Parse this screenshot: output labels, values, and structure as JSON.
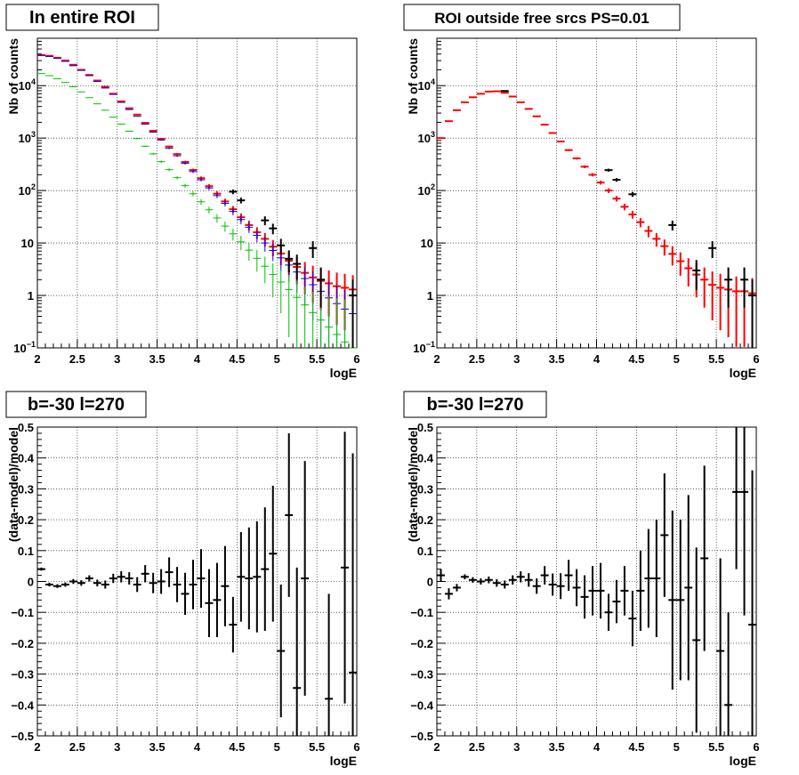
{
  "chart_data": [
    {
      "type": "scatter",
      "title": "In entire ROI",
      "xlabel": "logE",
      "ylabel": "Nb of counts",
      "xlim": [
        2,
        6
      ],
      "ylim": [
        0.1,
        80000
      ],
      "yscale": "log",
      "grid": true,
      "x_ticks": [
        "2",
        "2.5",
        "3",
        "3.5",
        "4",
        "4.5",
        "5",
        "5.5",
        "6"
      ],
      "y_ticks": [
        {
          "v": 0.1,
          "base": "10",
          "exp": "−1"
        },
        {
          "v": 1,
          "label": "1"
        },
        {
          "v": 10,
          "label": "10"
        },
        {
          "v": 100,
          "base": "10",
          "exp": "2"
        },
        {
          "v": 1000,
          "base": "10",
          "exp": "3"
        },
        {
          "v": 10000,
          "base": "10",
          "exp": "4"
        }
      ],
      "x": [
        2.05,
        2.15,
        2.25,
        2.35,
        2.45,
        2.55,
        2.65,
        2.75,
        2.85,
        2.95,
        3.05,
        3.15,
        3.25,
        3.35,
        3.45,
        3.55,
        3.65,
        3.75,
        3.85,
        3.95,
        4.05,
        4.15,
        4.25,
        4.35,
        4.45,
        4.55,
        4.65,
        4.75,
        4.85,
        4.95,
        5.05,
        5.15,
        5.25,
        5.35,
        5.45,
        5.55,
        5.65,
        5.75,
        5.85,
        5.95
      ],
      "series": [
        {
          "color": "#ff0000",
          "values": [
            38000,
            37000,
            34000,
            30000,
            25000,
            20000,
            16000,
            12500,
            9500,
            7000,
            5000,
            3700,
            2800,
            1950,
            1380,
            970,
            690,
            495,
            350,
            246,
            172,
            121,
            87,
            62,
            44,
            31,
            22,
            16,
            12,
            8.5,
            6.3,
            4.6,
            3.5,
            2.7,
            2.2,
            1.9,
            1.7,
            1.5,
            1.4,
            1.3
          ]
        },
        {
          "color": "#0000ff",
          "values": [
            38000,
            36000,
            33000,
            29000,
            24000,
            19500,
            15500,
            12000,
            9000,
            6800,
            4800,
            3500,
            2600,
            1850,
            1300,
            920,
            640,
            460,
            330,
            230,
            160,
            112,
            80,
            57,
            40,
            28,
            20,
            14,
            10,
            7.2,
            5.2,
            3.8,
            2.8,
            2.1,
            1.6,
            1.2,
            0.9,
            0.7,
            0.55,
            0.45
          ]
        },
        {
          "color": "#00c000",
          "values": [
            17000,
            15500,
            13500,
            11500,
            9500,
            7600,
            5900,
            4500,
            3400,
            2500,
            1850,
            1350,
            980,
            700,
            500,
            355,
            250,
            176,
            124,
            87,
            61,
            43,
            30,
            21,
            15,
            10.5,
            7.3,
            5.1,
            3.6,
            2.5,
            1.8,
            1.3,
            0.92,
            0.66,
            0.47,
            0.34,
            0.25,
            0.18,
            0.13,
            0.1
          ]
        },
        {
          "color": "#000000",
          "x": [
            4.45,
            4.55,
            4.85,
            4.95,
            5.05,
            5.15,
            5.25,
            5.45,
            5.55,
            5.95
          ],
          "values": [
            95,
            65,
            27,
            19,
            9,
            5,
            4,
            8,
            2,
            1
          ]
        }
      ]
    },
    {
      "type": "scatter",
      "title": "ROI outside free srcs PS=0.01",
      "xlabel": "logE",
      "ylabel": "Nb of counts",
      "xlim": [
        2,
        6
      ],
      "ylim": [
        0.1,
        80000
      ],
      "yscale": "log",
      "grid": true,
      "x_ticks": [
        "2",
        "2.5",
        "3",
        "3.5",
        "4",
        "4.5",
        "5",
        "5.5",
        "6"
      ],
      "y_ticks": [
        {
          "v": 0.1,
          "base": "10",
          "exp": "−1"
        },
        {
          "v": 1,
          "label": "1"
        },
        {
          "v": 10,
          "label": "10"
        },
        {
          "v": 100,
          "base": "10",
          "exp": "2"
        },
        {
          "v": 1000,
          "base": "10",
          "exp": "3"
        },
        {
          "v": 10000,
          "base": "10",
          "exp": "4"
        }
      ],
      "x": [
        2.05,
        2.15,
        2.25,
        2.35,
        2.45,
        2.55,
        2.65,
        2.75,
        2.85,
        2.95,
        3.05,
        3.15,
        3.25,
        3.35,
        3.45,
        3.55,
        3.65,
        3.75,
        3.85,
        3.95,
        4.05,
        4.15,
        4.25,
        4.35,
        4.45,
        4.55,
        4.65,
        4.75,
        4.85,
        4.95,
        5.05,
        5.15,
        5.25,
        5.35,
        5.45,
        5.55,
        5.65,
        5.75,
        5.85,
        5.95
      ],
      "series": [
        {
          "color": "#ff0000",
          "values": [
            1000,
            2100,
            3400,
            4800,
            6000,
            7000,
            7700,
            7800,
            7300,
            6200,
            4800,
            3600,
            2600,
            1800,
            1250,
            860,
            590,
            410,
            285,
            200,
            142,
            100,
            70,
            49,
            35,
            25,
            17,
            12,
            8.7,
            6.2,
            4.5,
            3.3,
            2.5,
            2,
            1.6,
            1.4,
            1.3,
            1.2,
            1.2,
            1.1
          ]
        },
        {
          "color": "#000000",
          "x": [
            2.85,
            4.15,
            4.25,
            4.45,
            4.95,
            5.25,
            5.45,
            5.65,
            5.85,
            5.95
          ],
          "values": [
            7900,
            245,
            160,
            85,
            22,
            3,
            8,
            2,
            2,
            1
          ]
        }
      ]
    },
    {
      "type": "scatter",
      "title": "b=-30 l=270",
      "xlabel": "logE",
      "ylabel": "(data-model)/model",
      "xlim": [
        2,
        6
      ],
      "ylim": [
        -0.5,
        0.5
      ],
      "grid": true,
      "x_ticks": [
        "2",
        "2.5",
        "3",
        "3.5",
        "4",
        "4.5",
        "5",
        "5.5",
        "6"
      ],
      "y_ticks": [
        "−0.5",
        "−0.4",
        "−0.3",
        "−0.2",
        "−0.1",
        "0",
        "0.1",
        "0.2",
        "0.3",
        "0.4",
        "0.5"
      ],
      "x": [
        2.05,
        2.15,
        2.25,
        2.35,
        2.45,
        2.55,
        2.65,
        2.75,
        2.85,
        2.95,
        3.05,
        3.15,
        3.25,
        3.35,
        3.45,
        3.55,
        3.65,
        3.75,
        3.85,
        3.95,
        4.05,
        4.15,
        4.25,
        4.35,
        4.45,
        4.55,
        4.65,
        4.75,
        4.85,
        4.95,
        5.05,
        5.15,
        5.25,
        5.35,
        5.45,
        5.55,
        5.65,
        5.75,
        5.85,
        5.95
      ],
      "values": [
        0.04,
        -0.01,
        -0.015,
        -0.01,
        0.0,
        -0.005,
        0.01,
        -0.005,
        -0.01,
        0.01,
        0.015,
        0.01,
        -0.01,
        0.025,
        -0.005,
        0.0,
        0.03,
        -0.01,
        -0.04,
        -0.01,
        0.01,
        -0.07,
        -0.06,
        -0.015,
        -0.14,
        0.015,
        0.01,
        0.015,
        0.04,
        0.09,
        -0.225,
        0.215,
        -0.345,
        0.01,
        null,
        null,
        -0.38,
        null,
        0.045,
        -0.295
      ],
      "errors": [
        0.005,
        0.006,
        0.006,
        0.007,
        0.008,
        0.009,
        0.01,
        0.011,
        0.013,
        0.015,
        0.018,
        0.02,
        0.024,
        0.028,
        0.033,
        0.04,
        0.048,
        0.057,
        0.068,
        0.08,
        0.095,
        0.11,
        0.12,
        0.13,
        0.09,
        0.145,
        0.165,
        0.18,
        0.2,
        0.22,
        0.215,
        0.265,
        0.39,
        0.38,
        null,
        null,
        0.34,
        null,
        0.44,
        0.71
      ]
    },
    {
      "type": "scatter",
      "title": "b=-30 l=270",
      "xlabel": "logE",
      "ylabel": "(data-model)/model",
      "xlim": [
        2,
        6
      ],
      "ylim": [
        -0.5,
        0.5
      ],
      "grid": true,
      "x_ticks": [
        "2",
        "2.5",
        "3",
        "3.5",
        "4",
        "4.5",
        "5",
        "5.5",
        "6"
      ],
      "y_ticks": [
        "−0.5",
        "−0.4",
        "−0.3",
        "−0.2",
        "−0.1",
        "0",
        "0.1",
        "0.2",
        "0.3",
        "0.4",
        "0.5"
      ],
      "x": [
        2.05,
        2.15,
        2.25,
        2.35,
        2.45,
        2.55,
        2.65,
        2.75,
        2.85,
        2.95,
        3.05,
        3.15,
        3.25,
        3.35,
        3.45,
        3.55,
        3.65,
        3.75,
        3.85,
        3.95,
        4.05,
        4.15,
        4.25,
        4.35,
        4.45,
        4.55,
        4.65,
        4.75,
        4.85,
        4.95,
        5.05,
        5.15,
        5.25,
        5.35,
        5.45,
        5.55,
        5.65,
        5.75,
        5.85,
        5.95
      ],
      "values": [
        0.02,
        -0.04,
        -0.02,
        0.015,
        0.005,
        0.0,
        0.005,
        -0.005,
        -0.01,
        0.005,
        0.015,
        0.005,
        -0.015,
        0.02,
        -0.01,
        -0.015,
        0.02,
        -0.02,
        -0.05,
        -0.03,
        -0.03,
        -0.1,
        -0.065,
        -0.03,
        -0.12,
        -0.03,
        0.01,
        0.01,
        0.15,
        -0.06,
        -0.06,
        -0.02,
        -0.19,
        0.075,
        null,
        -0.225,
        -0.4,
        0.29,
        0.29,
        -0.14
      ],
      "errors": [
        0.02,
        0.018,
        0.012,
        0.008,
        0.009,
        0.01,
        0.011,
        0.012,
        0.013,
        0.015,
        0.018,
        0.022,
        0.025,
        0.03,
        0.036,
        0.042,
        0.05,
        0.06,
        0.07,
        0.08,
        0.09,
        0.06,
        0.07,
        0.08,
        0.09,
        0.13,
        0.16,
        0.19,
        0.2,
        0.29,
        0.26,
        0.3,
        0.3,
        0.3,
        null,
        0.3,
        0.3,
        0.25,
        0.4,
        0.5
      ]
    }
  ]
}
